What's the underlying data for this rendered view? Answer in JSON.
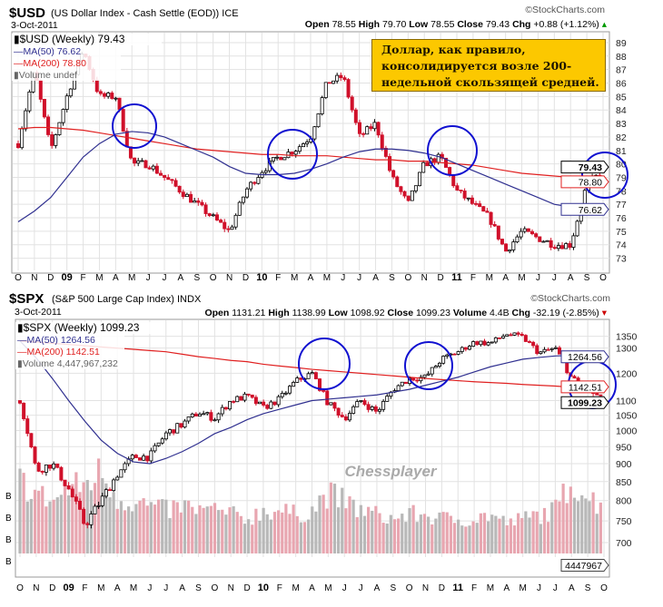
{
  "chart_data": [
    {
      "type": "candlestick",
      "symbol": "$USD",
      "title": "(US Dollar Index - Cash Settle (EOD)) ICE",
      "date": "3-Oct-2011",
      "watermark": "©StockCharts.com",
      "stats": {
        "open_label": "Open",
        "open": "78.55",
        "high_label": "High",
        "high": "79.70",
        "low_label": "Low",
        "low": "78.55",
        "close_label": "Close",
        "close": "79.43",
        "chg_label": "Chg",
        "chg": "+0.88 (+1.12%)"
      },
      "legend": [
        "$USD (Weekly) 79.43",
        "MA(50) 76.62",
        "MA(200) 78.80",
        "Volume undef"
      ],
      "tags": {
        "close": "79.43",
        "ma200": "78.80",
        "ma50": "76.62"
      },
      "months": [
        "O",
        "N",
        "D",
        "09",
        "F",
        "M",
        "A",
        "M",
        "J",
        "J",
        "A",
        "S",
        "O",
        "N",
        "D",
        "10",
        "F",
        "M",
        "A",
        "M",
        "J",
        "J",
        "A",
        "S",
        "O",
        "N",
        "D",
        "11",
        "F",
        "M",
        "A",
        "M",
        "J",
        "J",
        "A",
        "S",
        "O"
      ],
      "monthly_close": [
        81.5,
        87,
        81,
        85,
        88.5,
        85,
        85,
        80,
        80,
        79,
        78,
        77,
        76,
        75,
        78,
        79.5,
        80.5,
        81,
        82,
        86,
        86.5,
        82,
        83,
        79,
        77,
        80,
        80.5,
        78,
        77,
        76,
        73.5,
        75,
        74.5,
        74,
        74,
        78.5,
        79.43
      ],
      "ma50": [
        75.7,
        76.5,
        77.5,
        79,
        80.5,
        81.5,
        82.2,
        82.4,
        82.3,
        82,
        81.5,
        81,
        80.5,
        79.8,
        79.3,
        79.2,
        79.2,
        79.3,
        79.6,
        80,
        80.5,
        80.9,
        81.1,
        81.1,
        81,
        80.8,
        80.5,
        80,
        79.5,
        79,
        78.5,
        78,
        77.5,
        77,
        76.8,
        76.6,
        76.62
      ],
      "ma200": [
        82.6,
        82.7,
        82.7,
        82.6,
        82.5,
        82.3,
        82.1,
        81.9,
        81.7,
        81.5,
        81.3,
        81.1,
        81,
        80.9,
        80.8,
        80.7,
        80.7,
        80.6,
        80.6,
        80.6,
        80.5,
        80.4,
        80.3,
        80.3,
        80.2,
        80.2,
        80.1,
        80,
        79.9,
        79.7,
        79.5,
        79.3,
        79.2,
        79.1,
        79,
        78.9,
        78.8
      ],
      "yticks": [
        73,
        74,
        75,
        76,
        77,
        78,
        79,
        80,
        81,
        82,
        83,
        84,
        85,
        86,
        87,
        88,
        89
      ],
      "ylim": [
        72.5,
        89.4
      ],
      "annotation": [
        "Доллар, как правило,",
        "консолидируется  возле 200-",
        "недельной скользящей средней."
      ]
    },
    {
      "type": "candlestick",
      "symbol": "$SPX",
      "title": "(S&P 500 Large Cap Index) INDX",
      "date": "3-Oct-2011",
      "watermark": "©StockCharts.com",
      "stats": {
        "open_label": "Open",
        "open": "1131.21",
        "high_label": "High",
        "high": "1138.99",
        "low_label": "Low",
        "low": "1098.92",
        "close_label": "Close",
        "close": "1099.23",
        "vol_label": "Volume",
        "volume": "4.4B",
        "chg_label": "Chg",
        "chg": "-32.19 (-2.85%)"
      },
      "legend": [
        "$SPX (Weekly) 1099.23",
        "MA(50) 1264.56",
        "MA(200) 1142.51",
        "Volume 4,447,967,232"
      ],
      "tags": {
        "ma50": "1264.56",
        "ma200": "1142.51",
        "close": "1099.23",
        "volume": "4447967"
      },
      "months": [
        "O",
        "N",
        "D",
        "09",
        "F",
        "M",
        "A",
        "M",
        "J",
        "J",
        "A",
        "S",
        "O",
        "N",
        "D",
        "10",
        "F",
        "M",
        "A",
        "M",
        "J",
        "J",
        "A",
        "S",
        "O",
        "N",
        "D",
        "11",
        "F",
        "M",
        "A",
        "M",
        "J",
        "J",
        "A",
        "S",
        "O"
      ],
      "monthly_close": [
        1100,
        880,
        900,
        830,
        740,
        800,
        870,
        920,
        920,
        990,
        1020,
        1060,
        1040,
        1100,
        1115,
        1075,
        1105,
        1170,
        1200,
        1090,
        1040,
        1100,
        1060,
        1140,
        1180,
        1185,
        1255,
        1285,
        1325,
        1320,
        1360,
        1345,
        1280,
        1300,
        1180,
        1140,
        1099.23
      ],
      "ma50": [
        1330,
        1260,
        1180,
        1100,
        1030,
        970,
        930,
        905,
        900,
        915,
        935,
        960,
        990,
        1010,
        1035,
        1055,
        1070,
        1085,
        1100,
        1105,
        1110,
        1115,
        1120,
        1130,
        1140,
        1155,
        1170,
        1185,
        1205,
        1225,
        1240,
        1255,
        1262,
        1268,
        1270,
        1268,
        1264.56
      ],
      "ma200": [
        1330,
        1325,
        1320,
        1315,
        1310,
        1305,
        1300,
        1295,
        1290,
        1285,
        1275,
        1265,
        1258,
        1250,
        1245,
        1235,
        1228,
        1222,
        1215,
        1210,
        1205,
        1200,
        1195,
        1190,
        1185,
        1180,
        1176,
        1172,
        1168,
        1165,
        1162,
        1158,
        1155,
        1152,
        1148,
        1145,
        1142.51
      ],
      "volume_rel": [
        0.85,
        0.7,
        0.6,
        0.75,
        0.8,
        0.95,
        0.65,
        0.6,
        0.55,
        0.5,
        0.55,
        0.5,
        0.5,
        0.45,
        0.4,
        0.5,
        0.5,
        0.45,
        0.5,
        0.7,
        0.6,
        0.5,
        0.45,
        0.4,
        0.45,
        0.45,
        0.4,
        0.4,
        0.4,
        0.45,
        0.35,
        0.4,
        0.45,
        0.5,
        0.85,
        0.65,
        0.55
      ],
      "yticks": [
        700,
        750,
        800,
        850,
        900,
        950,
        1000,
        1050,
        1100,
        1200,
        1300,
        1350
      ],
      "ylim": [
        680,
        1380
      ],
      "volume_axis_labels": [
        "B",
        "B",
        "B",
        "B"
      ],
      "overlay_text": "Chessplayer"
    }
  ]
}
